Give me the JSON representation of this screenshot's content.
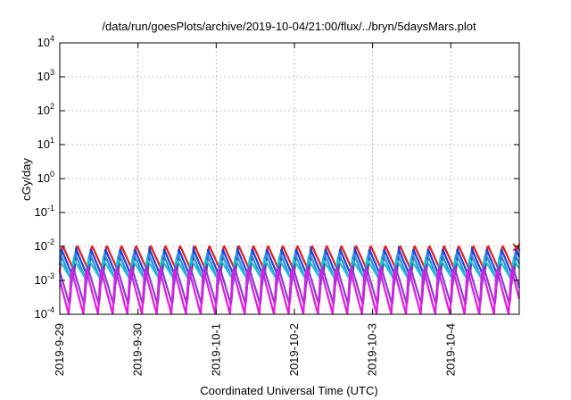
{
  "chart_data": {
    "type": "line",
    "title": "/data/run/goesPlots/archive/2019-10-04/21:00/flux/../bryn/5daysMars.plot",
    "xlabel": "Coordinated Universal Time (UTC)",
    "ylabel": "cGy/day",
    "yscale": "log",
    "ylim": [
      0.0001,
      10000
    ],
    "y_ticks": [
      {
        "value": 0.0001,
        "base": "10",
        "exp": "-4"
      },
      {
        "value": 0.001,
        "base": "10",
        "exp": "-3"
      },
      {
        "value": 0.01,
        "base": "10",
        "exp": "-2"
      },
      {
        "value": 0.1,
        "base": "10",
        "exp": "-1"
      },
      {
        "value": 1,
        "base": "10",
        "exp": "0"
      },
      {
        "value": 10,
        "base": "10",
        "exp": "1"
      },
      {
        "value": 100,
        "base": "10",
        "exp": "2"
      },
      {
        "value": 1000,
        "base": "10",
        "exp": "3"
      },
      {
        "value": 10000,
        "base": "10",
        "exp": "4"
      }
    ],
    "xlim": [
      "2019-09-29T00:00",
      "2019-10-04T21:00"
    ],
    "x_ticks": [
      "2019-9-29",
      "2019-9-30",
      "2019-10-1",
      "2019-10-2",
      "2019-10-3",
      "2019-10-4"
    ],
    "grid": true,
    "series": [
      {
        "color": "#e0201e",
        "peak": 0.011,
        "trough": 0.0018,
        "period_hours": 4.5
      },
      {
        "color": "#1f3fd8",
        "peak": 0.0085,
        "trough": 0.0012,
        "period_hours": 4.5
      },
      {
        "color": "#2a8fe8",
        "peak": 0.0065,
        "trough": 0.0009,
        "period_hours": 4.5
      },
      {
        "color": "#19c6d0",
        "peak": 0.0042,
        "trough": 0.0011,
        "period_hours": 4.5
      },
      {
        "color": "#8a3fd0",
        "peak": 0.0028,
        "trough": 0.00018,
        "period_hours": 4.5
      },
      {
        "color": "#e21be2",
        "peak": 0.0022,
        "trough": 0.0001,
        "period_hours": 4.5
      }
    ],
    "end_marker": {
      "color": "#e0201e",
      "value": 0.0095
    }
  }
}
